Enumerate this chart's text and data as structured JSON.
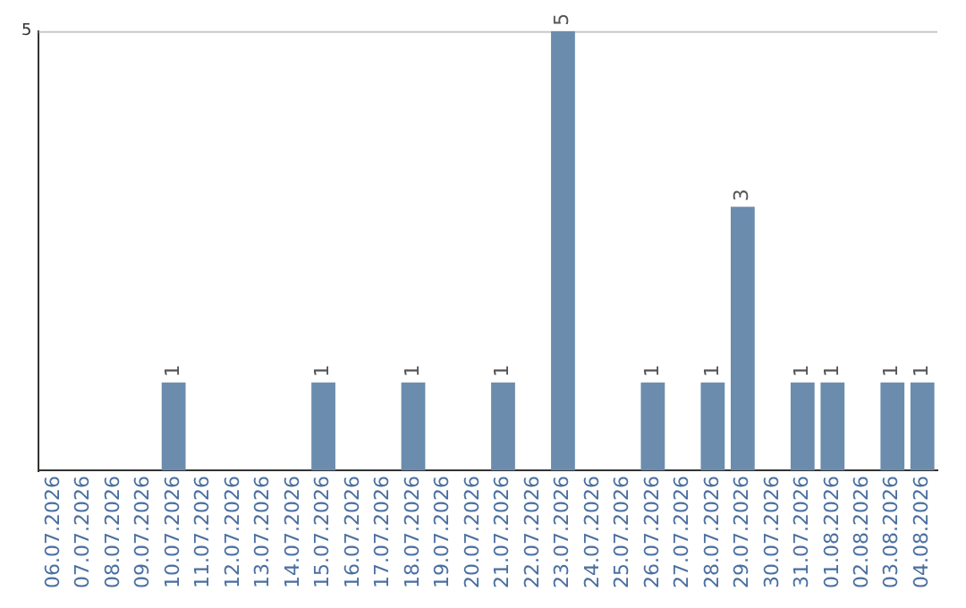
{
  "chart_data": {
    "type": "bar",
    "categories": [
      "06.07.2026",
      "07.07.2026",
      "08.07.2026",
      "09.07.2026",
      "10.07.2026",
      "11.07.2026",
      "12.07.2026",
      "13.07.2026",
      "14.07.2026",
      "15.07.2026",
      "16.07.2026",
      "17.07.2026",
      "18.07.2026",
      "19.07.2026",
      "20.07.2026",
      "21.07.2026",
      "22.07.2026",
      "23.07.2026",
      "24.07.2026",
      "25.07.2026",
      "26.07.2026",
      "27.07.2026",
      "28.07.2026",
      "29.07.2026",
      "30.07.2026",
      "31.07.2026",
      "01.08.2026",
      "02.08.2026",
      "03.08.2026",
      "04.08.2026"
    ],
    "values": [
      0,
      0,
      0,
      0,
      1,
      0,
      0,
      0,
      0,
      1,
      0,
      0,
      1,
      0,
      0,
      1,
      0,
      5,
      0,
      0,
      1,
      0,
      1,
      3,
      0,
      1,
      1,
      0,
      1,
      1
    ],
    "value_labels": [
      null,
      null,
      null,
      null,
      "1",
      null,
      null,
      null,
      null,
      "1",
      null,
      null,
      "1",
      null,
      null,
      "1",
      null,
      "5",
      null,
      null,
      "1",
      null,
      "1",
      "3",
      null,
      "1",
      "1",
      null,
      "1",
      "1"
    ],
    "color": "#6b8cad",
    "ylim": [
      0,
      5
    ],
    "yticks": [
      5
    ]
  }
}
